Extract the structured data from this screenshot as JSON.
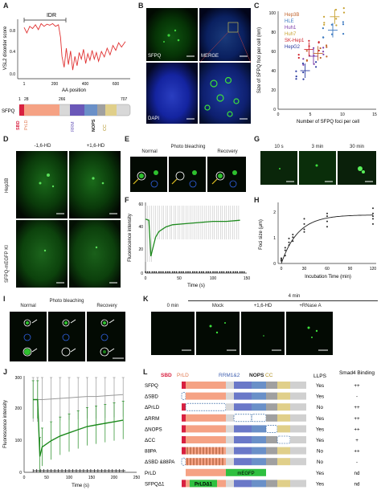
{
  "panels": {
    "A": "A",
    "B": "B",
    "C": "C",
    "D": "D",
    "E": "E",
    "F": "F",
    "G": "G",
    "H": "H",
    "I": "I",
    "J": "J",
    "K": "K",
    "L": "L"
  },
  "panelA": {
    "ylabel": "VSL2 disorder score",
    "xlabel": "AA position",
    "idr_label": "IDR",
    "yticks": [
      "0.8",
      "0.4",
      "0.0"
    ],
    "xticks": [
      "1",
      "200",
      "400",
      "600"
    ],
    "protein": "SFPQ",
    "positions": [
      "1",
      "28",
      "266",
      "707"
    ],
    "domains": [
      "SBD",
      "PrLD",
      "RRM",
      "NOPS",
      "CC"
    ],
    "trace": [
      [
        1,
        0.88
      ],
      [
        20,
        0.78
      ],
      [
        40,
        0.9
      ],
      [
        60,
        0.86
      ],
      [
        80,
        0.93
      ],
      [
        100,
        0.84
      ],
      [
        120,
        0.95
      ],
      [
        140,
        0.9
      ],
      [
        160,
        0.94
      ],
      [
        180,
        0.92
      ],
      [
        200,
        0.95
      ],
      [
        220,
        0.9
      ],
      [
        240,
        0.93
      ],
      [
        255,
        0.7
      ],
      [
        265,
        0.35
      ],
      [
        280,
        0.15
      ],
      [
        295,
        0.5
      ],
      [
        310,
        0.2
      ],
      [
        325,
        0.45
      ],
      [
        340,
        0.1
      ],
      [
        355,
        0.35
      ],
      [
        370,
        0.18
      ],
      [
        385,
        0.42
      ],
      [
        400,
        0.3
      ],
      [
        415,
        0.48
      ],
      [
        430,
        0.22
      ],
      [
        445,
        0.4
      ],
      [
        460,
        0.28
      ],
      [
        475,
        0.46
      ],
      [
        490,
        0.3
      ],
      [
        505,
        0.42
      ],
      [
        520,
        0.26
      ],
      [
        540,
        0.44
      ],
      [
        560,
        0.34
      ],
      [
        580,
        0.5
      ],
      [
        600,
        0.38
      ],
      [
        620,
        0.55
      ],
      [
        640,
        0.46
      ],
      [
        660,
        0.6
      ],
      [
        680,
        0.52
      ],
      [
        707,
        0.62
      ]
    ]
  },
  "panelB": {
    "sfpq": "SFPQ",
    "merge": "MERGE",
    "dapi": "DAPI"
  },
  "panelC": {
    "ylabel": "Size of SFPQ foci per cell (nm)",
    "xlabel": "Number of SFPQ foci per cell",
    "yticks": [
      "100",
      "80",
      "60",
      "40",
      "20",
      "0"
    ],
    "xticks": [
      "0",
      "5",
      "10",
      "15"
    ],
    "legend": [
      {
        "name": "Hep3B",
        "color": "#c0622a"
      },
      {
        "name": "HLE",
        "color": "#3a78c0"
      },
      {
        "name": "Huh1",
        "color": "#7a3aa8"
      },
      {
        "name": "Huh7",
        "color": "#c8a232"
      },
      {
        "name": "SK-Hep1",
        "color": "#d0242c"
      },
      {
        "name": "HepG2",
        "color": "#2a3aa0"
      }
    ]
  },
  "panelD": {
    "cond1": "-1,6-HD",
    "cond2": "+1,6-HD",
    "row1": "Hep3B",
    "row2": "SFPQ-mEGFP KI"
  },
  "panelE": {
    "t1": "Normal",
    "t2": "Photo bleaching",
    "t3": "Recovery"
  },
  "panelF": {
    "ylabel": "Fluorescence intensity",
    "xlabel": "Time (s)",
    "yticks": [
      "60",
      "40",
      "20",
      "0"
    ],
    "xticks": [
      "0",
      "50",
      "100",
      "150"
    ],
    "chart_data": {
      "type": "line",
      "xlabel": "Time (s)",
      "ylabel": "Fluorescence intensity",
      "xlim": [
        0,
        150
      ],
      "ylim": [
        0,
        60
      ],
      "series": [
        {
          "x": [
            0,
            5,
            8,
            10,
            15,
            20,
            30,
            40,
            60,
            80,
            100,
            120,
            140
          ],
          "values": [
            48,
            47,
            15,
            20,
            32,
            37,
            41,
            43,
            44,
            45,
            46,
            46,
            47
          ]
        },
        {
          "x": [
            0,
            10,
            20,
            30,
            40,
            50,
            60,
            70,
            80,
            90,
            100,
            110,
            120,
            130,
            140
          ],
          "values": [
            1,
            1,
            1,
            1,
            1,
            1,
            1,
            1,
            1,
            1,
            1,
            1,
            1,
            1,
            1
          ]
        }
      ]
    }
  },
  "panelG": {
    "t1": "10 s",
    "t2": "3 min",
    "t3": "30 min"
  },
  "panelH": {
    "ylabel": "Foci size (μm)",
    "xlabel": "Incubation Time (min)",
    "yticks": [
      "2",
      "1",
      "0"
    ],
    "xticks": [
      "0",
      "30",
      "60",
      "90",
      "120"
    ],
    "chart_data": {
      "type": "scatter",
      "xlabel": "Incubation Time (min)",
      "ylabel": "Foci size (μm)",
      "xlim": [
        -5,
        125
      ],
      "ylim": [
        0,
        2.2
      ],
      "x": [
        0,
        0,
        0,
        5,
        5,
        5,
        10,
        10,
        10,
        15,
        15,
        15,
        30,
        30,
        30,
        30,
        60,
        60,
        60,
        60,
        120,
        120,
        120,
        120,
        120
      ],
      "values": [
        0.1,
        0.15,
        0.2,
        0.3,
        0.5,
        0.6,
        0.7,
        0.8,
        0.95,
        0.85,
        1.0,
        1.1,
        1.2,
        1.3,
        1.5,
        1.7,
        1.4,
        1.6,
        1.8,
        1.9,
        1.5,
        1.7,
        1.8,
        1.9,
        2.1
      ]
    }
  },
  "panelI": {
    "t1": "Normal",
    "t2": "Photo bleaching",
    "t3": "Recovery"
  },
  "panelJ": {
    "ylabel": "Fluorescence intensity",
    "xlabel": "Time (s)",
    "yticks": [
      "300",
      "200",
      "100",
      "0"
    ],
    "xticks": [
      "0",
      "50",
      "100",
      "150",
      "200",
      "250"
    ],
    "chart_data": {
      "type": "line",
      "xlabel": "Time (s)",
      "ylabel": "Fluorescence intensity",
      "xlim": [
        0,
        250
      ],
      "ylim": [
        0,
        300
      ],
      "series": [
        {
          "x": [
            20,
            30,
            40,
            60,
            80,
            100,
            120,
            140,
            160,
            180,
            200,
            220
          ],
          "values": [
            230,
            230,
            230,
            232,
            234,
            236,
            238,
            240,
            240,
            242,
            244,
            246
          ]
        },
        {
          "x": [
            20,
            30,
            35,
            40,
            60,
            80,
            100,
            120,
            140,
            160,
            180,
            200,
            220
          ],
          "values": [
            230,
            230,
            50,
            80,
            100,
            115,
            125,
            135,
            145,
            150,
            155,
            160,
            165
          ]
        },
        {
          "x": [
            20,
            40,
            60,
            80,
            100,
            120,
            140,
            160,
            180,
            200,
            220
          ],
          "values": [
            5,
            5,
            5,
            5,
            5,
            5,
            5,
            5,
            5,
            5,
            5
          ]
        }
      ]
    }
  },
  "panelK": {
    "time": "4 min",
    "t0": "0 min",
    "c1": "Mock",
    "c2": "+1,6-HD",
    "c3": "+RNase A"
  },
  "panelL": {
    "domains": [
      "SBD",
      "PrLD",
      "RRM1&2",
      "NOPS",
      "CC"
    ],
    "col_llps": "LLPS",
    "col_smad4": "Smad4 Binding",
    "mEGFP": "mEGFP",
    "rows": [
      {
        "name": "SFPQ",
        "llps": "Yes",
        "smad4": "++"
      },
      {
        "name": "ΔSBD",
        "llps": "Yes",
        "smad4": "-"
      },
      {
        "name": "ΔPrLD",
        "llps": "No",
        "smad4": "++"
      },
      {
        "name": "ΔRRM",
        "llps": "Yes",
        "smad4": "++"
      },
      {
        "name": "ΔNOPS",
        "llps": "Yes",
        "smad4": "++"
      },
      {
        "name": "ΔCC",
        "llps": "Yes",
        "smad4": "+"
      },
      {
        "name": "88PA",
        "llps": "No",
        "smad4": "++"
      },
      {
        "name": "ΔSBD &88PA",
        "llps": "No",
        "smad4": "-"
      },
      {
        "name": "PrLD",
        "llps": "Yes",
        "smad4": "nd"
      },
      {
        "name": "SFPQΔ1",
        "llps": "Yes",
        "smad4": "nd"
      }
    ],
    "prld_box": "PrLDΔ1"
  }
}
